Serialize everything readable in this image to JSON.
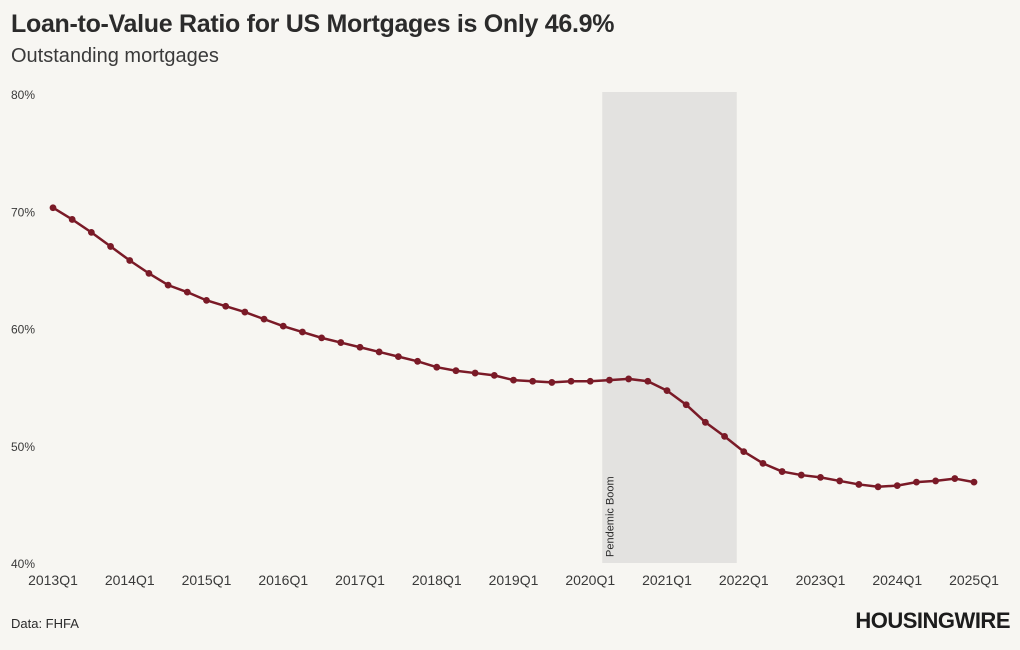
{
  "header": {
    "title": "Loan-to-Value Ratio for US Mortgages is Only 46.9%",
    "subtitle": "Outstanding mortgages"
  },
  "footer": {
    "source": "Data: FHFA",
    "logo": "HOUSINGWIRE"
  },
  "colors": {
    "line": "#7a1a27",
    "shade": "#e3e2e0",
    "background": "#f7f6f2",
    "text": "#3a3a3a"
  },
  "chart_data": {
    "type": "line",
    "title": "Loan-to-Value Ratio for US Mortgages is Only 46.9%",
    "subtitle": "Outstanding mortgages",
    "ylim": [
      40,
      80
    ],
    "yticks": [
      "40%",
      "50%",
      "60%",
      "70%",
      "80%"
    ],
    "ytick_values": [
      40,
      50,
      60,
      70,
      80
    ],
    "xticks": [
      "2013Q1",
      "2014Q1",
      "2015Q1",
      "2016Q1",
      "2017Q1",
      "2018Q1",
      "2019Q1",
      "2020Q1",
      "2021Q1",
      "2022Q1",
      "2023Q1",
      "2024Q1",
      "2025Q1"
    ],
    "x_range": [
      "2013Q1",
      "2025Q1"
    ],
    "grid": false,
    "shaded_region": {
      "label": "Pendemic Boom",
      "start": "2020Q1",
      "end": "2022Q1"
    },
    "x": [
      "2013Q1",
      "2013Q2",
      "2013Q3",
      "2013Q4",
      "2014Q1",
      "2014Q2",
      "2014Q3",
      "2014Q4",
      "2015Q1",
      "2015Q2",
      "2015Q3",
      "2015Q4",
      "2016Q1",
      "2016Q2",
      "2016Q3",
      "2016Q4",
      "2017Q1",
      "2017Q2",
      "2017Q3",
      "2017Q4",
      "2018Q1",
      "2018Q2",
      "2018Q3",
      "2018Q4",
      "2019Q1",
      "2019Q2",
      "2019Q3",
      "2019Q4",
      "2020Q1",
      "2020Q2",
      "2020Q3",
      "2020Q4",
      "2021Q1",
      "2021Q2",
      "2021Q3",
      "2021Q4",
      "2022Q1",
      "2022Q2",
      "2022Q3",
      "2022Q4",
      "2023Q1",
      "2023Q2",
      "2023Q3",
      "2023Q4",
      "2024Q1",
      "2024Q2",
      "2024Q3",
      "2024Q4",
      "2025Q1"
    ],
    "series": [
      {
        "values": [
          70.3,
          69.3,
          68.2,
          67.0,
          65.8,
          64.7,
          63.7,
          63.1,
          62.4,
          61.9,
          61.4,
          60.8,
          60.2,
          59.7,
          59.2,
          58.8,
          58.4,
          58.0,
          57.6,
          57.2,
          56.7,
          56.4,
          56.2,
          56.0,
          55.6,
          55.5,
          55.4,
          55.5,
          55.5,
          55.6,
          55.7,
          55.5,
          54.7,
          53.5,
          52.0,
          50.8,
          49.5,
          48.5,
          47.8,
          47.5,
          47.3,
          47.0,
          46.7,
          46.5,
          46.6,
          46.9,
          47.0,
          47.2,
          46.9
        ]
      }
    ]
  }
}
